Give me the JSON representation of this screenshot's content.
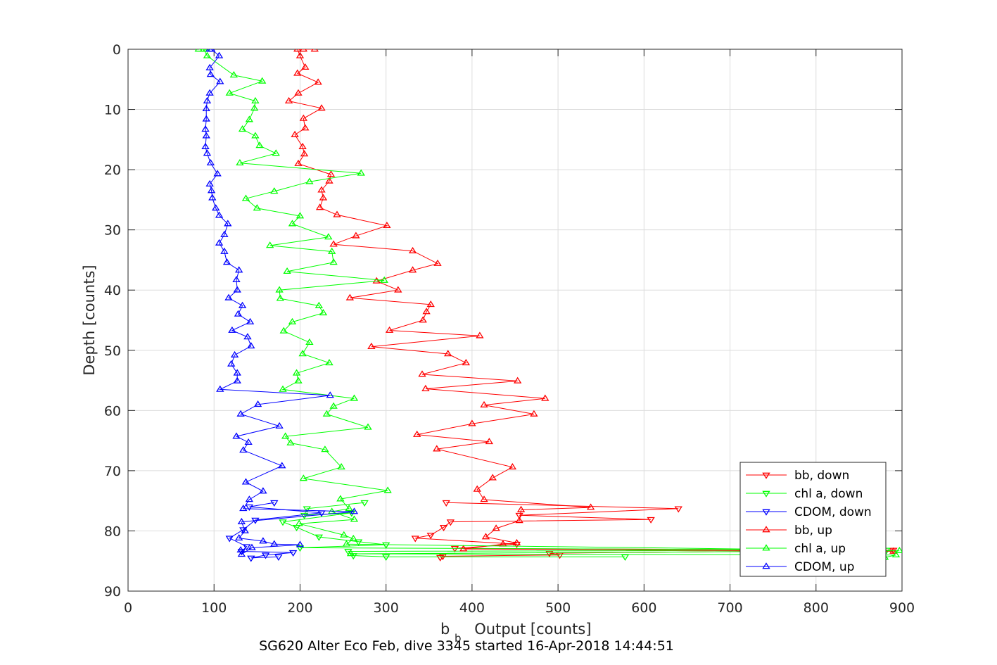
{
  "chart_data": {
    "type": "line",
    "xlabel_main": "b",
    "xlabel_sub": "b",
    "xlabel_rest": "Output [counts]",
    "ylabel": "Depth [counts]",
    "caption": "SG620 Alter Eco Feb, dive 3345 started 16-Apr-2018 14:44:51",
    "xlim": [
      0,
      900
    ],
    "ylim": [
      0,
      90
    ],
    "y_reversed": true,
    "grid": true,
    "legend_placement": "bottom-right",
    "x_ticks": [
      "0",
      "100",
      "200",
      "300",
      "400",
      "500",
      "600",
      "700",
      "800",
      "900"
    ],
    "y_ticks": [
      "0",
      "10",
      "20",
      "30",
      "40",
      "50",
      "60",
      "70",
      "80",
      "90"
    ],
    "series": [
      {
        "name": "bb, down",
        "color": "#ff0000",
        "marker": "triangle-down",
        "points": [
          [
            370,
            75.3
          ],
          [
            640,
            76.3
          ],
          [
            455,
            77.4
          ],
          [
            608,
            78.1
          ],
          [
            375,
            78.5
          ],
          [
            367,
            79.4
          ],
          [
            352,
            80.7
          ],
          [
            334,
            81.2
          ],
          [
            452,
            82.2
          ],
          [
            380,
            82.9
          ],
          [
            890,
            83.2
          ],
          [
            490,
            83.7
          ],
          [
            502,
            84.0
          ],
          [
            366,
            84.2
          ],
          [
            363,
            84.4
          ]
        ]
      },
      {
        "name": "chl a, down",
        "color": "#00ff00",
        "marker": "triangle-down",
        "points": [
          [
            275,
            75.3
          ],
          [
            208,
            76.3
          ],
          [
            205,
            77.4
          ],
          [
            260,
            77.0
          ],
          [
            180,
            78.5
          ],
          [
            196,
            79.4
          ],
          [
            222,
            81.0
          ],
          [
            268,
            81.8
          ],
          [
            300,
            82.3
          ],
          [
            200,
            82.8
          ],
          [
            882,
            83.2
          ],
          [
            256,
            83.4
          ],
          [
            262,
            84.1
          ],
          [
            300,
            84.3
          ],
          [
            578,
            84.3
          ]
        ]
      },
      {
        "name": "CDOM, down",
        "color": "#0000ff",
        "marker": "triangle-down",
        "points": [
          [
            170,
            75.3
          ],
          [
            141,
            76.0
          ],
          [
            225,
            77.0
          ],
          [
            148,
            78.2
          ],
          [
            134,
            79.8
          ],
          [
            118,
            81.2
          ],
          [
            138,
            82.6
          ],
          [
            132,
            83.4
          ],
          [
            192,
            83.6
          ],
          [
            160,
            84.0
          ],
          [
            143,
            84.5
          ],
          [
            175,
            84.3
          ]
        ]
      },
      {
        "name": "bb, up",
        "color": "#ff0000",
        "marker": "triangle-up",
        "points": [
          [
            217,
            0
          ],
          [
            204,
            0
          ],
          [
            197,
            0
          ],
          [
            200,
            1.1
          ],
          [
            206,
            3.0
          ],
          [
            197,
            4.0
          ],
          [
            221,
            5.5
          ],
          [
            198,
            7.3
          ],
          [
            187,
            8.6
          ],
          [
            225,
            9.8
          ],
          [
            204,
            11.5
          ],
          [
            206,
            13.1
          ],
          [
            194,
            14.2
          ],
          [
            203,
            16.2
          ],
          [
            205,
            17.4
          ],
          [
            198,
            19.0
          ],
          [
            236,
            20.8
          ],
          [
            234,
            21.9
          ],
          [
            225,
            23.4
          ],
          [
            227,
            24.7
          ],
          [
            223,
            26.3
          ],
          [
            243,
            27.5
          ],
          [
            301,
            29.3
          ],
          [
            265,
            31.0
          ],
          [
            239,
            32.4
          ],
          [
            331,
            33.5
          ],
          [
            360,
            35.6
          ],
          [
            331,
            36.7
          ],
          [
            289,
            38.5
          ],
          [
            314,
            40.0
          ],
          [
            258,
            41.3
          ],
          [
            352,
            42.4
          ],
          [
            347,
            43.6
          ],
          [
            343,
            45.0
          ],
          [
            304,
            46.7
          ],
          [
            409,
            47.6
          ],
          [
            283,
            49.4
          ],
          [
            372,
            50.6
          ],
          [
            393,
            52.1
          ],
          [
            342,
            54.0
          ],
          [
            453,
            55.1
          ],
          [
            346,
            56.4
          ],
          [
            485,
            58.0
          ],
          [
            414,
            59.1
          ],
          [
            472,
            60.6
          ],
          [
            400,
            62.2
          ],
          [
            336,
            64.0
          ],
          [
            420,
            65.2
          ],
          [
            359,
            66.4
          ],
          [
            447,
            69.4
          ],
          [
            424,
            71.2
          ],
          [
            406,
            73.1
          ],
          [
            414,
            74.8
          ],
          [
            538,
            76.1
          ],
          [
            457,
            76.5
          ],
          [
            455,
            78.3
          ],
          [
            428,
            79.6
          ],
          [
            416,
            81.0
          ],
          [
            452,
            82.0
          ],
          [
            436,
            82.2
          ],
          [
            390,
            83.0
          ],
          [
            890,
            83.4
          ]
        ]
      },
      {
        "name": "chl a, up",
        "color": "#00ff00",
        "marker": "triangle-up",
        "points": [
          [
            82,
            0
          ],
          [
            91,
            0
          ],
          [
            88,
            0
          ],
          [
            92,
            1.1
          ],
          [
            123,
            4.3
          ],
          [
            156,
            5.3
          ],
          [
            118,
            7.3
          ],
          [
            148,
            8.6
          ],
          [
            147,
            9.8
          ],
          [
            141,
            11.7
          ],
          [
            133,
            13.3
          ],
          [
            148,
            14.4
          ],
          [
            153,
            16.0
          ],
          [
            172,
            17.3
          ],
          [
            130,
            18.9
          ],
          [
            271,
            20.6
          ],
          [
            211,
            22.0
          ],
          [
            170,
            23.6
          ],
          [
            137,
            24.8
          ],
          [
            150,
            26.4
          ],
          [
            200,
            27.7
          ],
          [
            191,
            29.0
          ],
          [
            233,
            31.2
          ],
          [
            165,
            32.6
          ],
          [
            237,
            33.6
          ],
          [
            239,
            35.4
          ],
          [
            185,
            36.9
          ],
          [
            298,
            38.4
          ],
          [
            176,
            40.0
          ],
          [
            177,
            41.4
          ],
          [
            222,
            42.6
          ],
          [
            227,
            43.8
          ],
          [
            191,
            45.3
          ],
          [
            181,
            46.8
          ],
          [
            211,
            48.7
          ],
          [
            203,
            50.6
          ],
          [
            234,
            52.1
          ],
          [
            196,
            53.8
          ],
          [
            198,
            55.1
          ],
          [
            180,
            56.5
          ],
          [
            263,
            58.0
          ],
          [
            239,
            59.3
          ],
          [
            231,
            60.6
          ],
          [
            279,
            62.8
          ],
          [
            183,
            64.3
          ],
          [
            189,
            65.4
          ],
          [
            229,
            66.5
          ],
          [
            248,
            69.4
          ],
          [
            204,
            71.3
          ],
          [
            302,
            73.3
          ],
          [
            247,
            74.7
          ],
          [
            257,
            76.3
          ],
          [
            237,
            76.8
          ],
          [
            263,
            78.1
          ],
          [
            199,
            78.8
          ],
          [
            251,
            80.7
          ],
          [
            262,
            81.3
          ],
          [
            254,
            82.2
          ],
          [
            897,
            83.3
          ],
          [
            259,
            83.8
          ],
          [
            893,
            84.0
          ],
          [
            880,
            84.4
          ]
        ]
      },
      {
        "name": "CDOM, up",
        "color": "#0000ff",
        "marker": "triangle-up",
        "points": [
          [
            95,
            0
          ],
          [
            97,
            0
          ],
          [
            106,
            1.1
          ],
          [
            95,
            3.1
          ],
          [
            96,
            4.2
          ],
          [
            107,
            5.4
          ],
          [
            95,
            7.3
          ],
          [
            92,
            8.6
          ],
          [
            91,
            9.9
          ],
          [
            91,
            11.6
          ],
          [
            90,
            13.3
          ],
          [
            91,
            14.4
          ],
          [
            90,
            16.2
          ],
          [
            92,
            17.3
          ],
          [
            96,
            18.9
          ],
          [
            104,
            20.7
          ],
          [
            95,
            22.4
          ],
          [
            97,
            23.5
          ],
          [
            98,
            24.7
          ],
          [
            102,
            26.4
          ],
          [
            106,
            27.6
          ],
          [
            116,
            29.0
          ],
          [
            112,
            30.8
          ],
          [
            106,
            32.2
          ],
          [
            112,
            33.6
          ],
          [
            115,
            35.4
          ],
          [
            129,
            36.7
          ],
          [
            126,
            38.3
          ],
          [
            127,
            40.0
          ],
          [
            117,
            41.3
          ],
          [
            133,
            42.6
          ],
          [
            128,
            44.0
          ],
          [
            142,
            45.3
          ],
          [
            121,
            46.7
          ],
          [
            139,
            47.8
          ],
          [
            143,
            49.3
          ],
          [
            124,
            50.8
          ],
          [
            120,
            52.3
          ],
          [
            127,
            53.8
          ],
          [
            127,
            55.1
          ],
          [
            107,
            56.5
          ],
          [
            235,
            57.5
          ],
          [
            151,
            59.0
          ],
          [
            131,
            60.6
          ],
          [
            176,
            62.6
          ],
          [
            126,
            64.3
          ],
          [
            140,
            65.3
          ],
          [
            134,
            66.6
          ],
          [
            179,
            69.2
          ],
          [
            137,
            71.9
          ],
          [
            157,
            73.4
          ],
          [
            141,
            74.8
          ],
          [
            134,
            76.3
          ],
          [
            263,
            76.8
          ],
          [
            132,
            78.5
          ],
          [
            136,
            80.0
          ],
          [
            129,
            81.2
          ],
          [
            157,
            81.7
          ],
          [
            170,
            82.2
          ],
          [
            200,
            82.3
          ],
          [
            144,
            82.8
          ],
          [
            132,
            83.9
          ],
          [
            131,
            83.2
          ]
        ]
      }
    ]
  }
}
